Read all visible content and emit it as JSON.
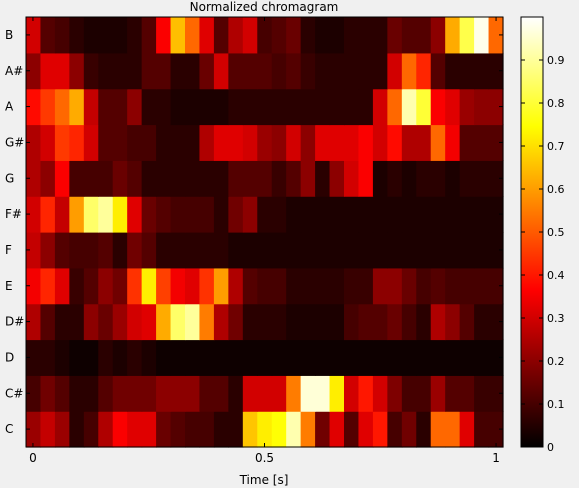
{
  "chart_data": {
    "type": "heatmap",
    "title": "Normalized chromagram",
    "xlabel": "Time [s]",
    "ylabel": "",
    "x_ticks": [
      0,
      0.5,
      1
    ],
    "x_tick_labels": [
      "0",
      "0.5",
      "1"
    ],
    "xlim": [
      -0.015,
      1.015
    ],
    "rows": [
      "C",
      "C#",
      "D",
      "D#",
      "E",
      "F",
      "F#",
      "G",
      "G#",
      "A",
      "A#",
      "B"
    ],
    "n_frames": 33,
    "colormap": "hot",
    "colorbar": {
      "range": [
        0,
        1
      ],
      "ticks": [
        0,
        0.1,
        0.2,
        0.3,
        0.4,
        0.5,
        0.6,
        0.7,
        0.8,
        0.9
      ],
      "tick_labels": [
        "0",
        "0.1",
        "0.2",
        "0.3",
        "0.4",
        "0.5",
        "0.6",
        "0.7",
        "0.8",
        "0.9"
      ]
    },
    "values": [
      [
        0.22,
        0.28,
        0.22,
        0.06,
        0.1,
        0.25,
        0.36,
        0.32,
        0.32,
        0.15,
        0.12,
        0.1,
        0.1,
        0.06,
        0.06,
        0.66,
        0.72,
        0.75,
        0.92,
        0.55,
        0.16,
        0.32,
        0.12,
        0.32,
        0.4,
        0.1,
        0.16,
        0.06,
        0.52,
        0.52,
        0.32,
        0.1,
        0.1
      ],
      [
        0.1,
        0.16,
        0.12,
        0.06,
        0.06,
        0.12,
        0.16,
        0.16,
        0.16,
        0.2,
        0.2,
        0.2,
        0.12,
        0.12,
        0.06,
        0.3,
        0.3,
        0.3,
        0.55,
        0.96,
        0.96,
        0.72,
        0.3,
        0.4,
        0.3,
        0.18,
        0.1,
        0.1,
        0.22,
        0.12,
        0.12,
        0.08,
        0.08
      ],
      [
        0.06,
        0.06,
        0.04,
        0.02,
        0.02,
        0.06,
        0.04,
        0.06,
        0.04,
        0.02,
        0.02,
        0.02,
        0.02,
        0.02,
        0.02,
        0.02,
        0.02,
        0.02,
        0.02,
        0.02,
        0.02,
        0.02,
        0.02,
        0.02,
        0.02,
        0.02,
        0.02,
        0.02,
        0.02,
        0.02,
        0.02,
        0.02,
        0.02
      ],
      [
        0.25,
        0.12,
        0.06,
        0.06,
        0.2,
        0.15,
        0.22,
        0.3,
        0.32,
        0.62,
        0.85,
        0.9,
        0.55,
        0.25,
        0.16,
        0.06,
        0.06,
        0.06,
        0.04,
        0.04,
        0.04,
        0.04,
        0.1,
        0.12,
        0.12,
        0.15,
        0.1,
        0.06,
        0.25,
        0.2,
        0.12,
        0.06,
        0.06
      ],
      [
        0.35,
        0.42,
        0.32,
        0.08,
        0.12,
        0.2,
        0.16,
        0.44,
        0.72,
        0.46,
        0.35,
        0.32,
        0.44,
        0.6,
        0.25,
        0.12,
        0.1,
        0.1,
        0.06,
        0.06,
        0.06,
        0.06,
        0.08,
        0.08,
        0.2,
        0.2,
        0.15,
        0.1,
        0.12,
        0.1,
        0.1,
        0.1,
        0.1
      ],
      [
        0.28,
        0.2,
        0.12,
        0.1,
        0.1,
        0.12,
        0.06,
        0.16,
        0.12,
        0.06,
        0.06,
        0.06,
        0.06,
        0.06,
        0.04,
        0.04,
        0.04,
        0.04,
        0.04,
        0.04,
        0.04,
        0.04,
        0.04,
        0.04,
        0.04,
        0.04,
        0.04,
        0.04,
        0.04,
        0.04,
        0.04,
        0.04,
        0.04
      ],
      [
        0.3,
        0.42,
        0.28,
        0.6,
        0.85,
        0.9,
        0.72,
        0.32,
        0.15,
        0.12,
        0.1,
        0.1,
        0.1,
        0.06,
        0.16,
        0.2,
        0.06,
        0.06,
        0.04,
        0.04,
        0.04,
        0.04,
        0.04,
        0.04,
        0.04,
        0.04,
        0.04,
        0.04,
        0.04,
        0.04,
        0.04,
        0.04,
        0.04
      ],
      [
        0.25,
        0.2,
        0.36,
        0.1,
        0.1,
        0.1,
        0.15,
        0.12,
        0.06,
        0.06,
        0.06,
        0.06,
        0.06,
        0.06,
        0.12,
        0.12,
        0.12,
        0.08,
        0.12,
        0.2,
        0.06,
        0.2,
        0.3,
        0.36,
        0.04,
        0.06,
        0.04,
        0.06,
        0.06,
        0.04,
        0.06,
        0.06,
        0.06
      ],
      [
        0.25,
        0.3,
        0.45,
        0.42,
        0.3,
        0.12,
        0.12,
        0.1,
        0.1,
        0.06,
        0.06,
        0.06,
        0.25,
        0.32,
        0.32,
        0.3,
        0.22,
        0.2,
        0.3,
        0.2,
        0.32,
        0.32,
        0.32,
        0.36,
        0.3,
        0.38,
        0.25,
        0.25,
        0.52,
        0.35,
        0.12,
        0.12,
        0.12
      ],
      [
        0.38,
        0.45,
        0.52,
        0.62,
        0.28,
        0.12,
        0.12,
        0.2,
        0.06,
        0.06,
        0.04,
        0.04,
        0.04,
        0.04,
        0.06,
        0.06,
        0.06,
        0.06,
        0.06,
        0.06,
        0.06,
        0.06,
        0.06,
        0.06,
        0.3,
        0.52,
        0.92,
        0.8,
        0.36,
        0.32,
        0.22,
        0.2,
        0.2
      ],
      [
        0.2,
        0.32,
        0.32,
        0.2,
        0.08,
        0.06,
        0.06,
        0.06,
        0.12,
        0.12,
        0.06,
        0.06,
        0.15,
        0.3,
        0.12,
        0.12,
        0.12,
        0.1,
        0.12,
        0.08,
        0.06,
        0.06,
        0.06,
        0.06,
        0.06,
        0.3,
        0.52,
        0.42,
        0.12,
        0.06,
        0.06,
        0.06,
        0.06
      ],
      [
        0.3,
        0.12,
        0.1,
        0.06,
        0.04,
        0.04,
        0.04,
        0.06,
        0.12,
        0.36,
        0.65,
        0.52,
        0.32,
        0.12,
        0.25,
        0.3,
        0.1,
        0.12,
        0.15,
        0.06,
        0.04,
        0.04,
        0.06,
        0.06,
        0.06,
        0.15,
        0.12,
        0.12,
        0.2,
        0.62,
        0.82,
        0.98,
        0.52
      ]
    ]
  }
}
